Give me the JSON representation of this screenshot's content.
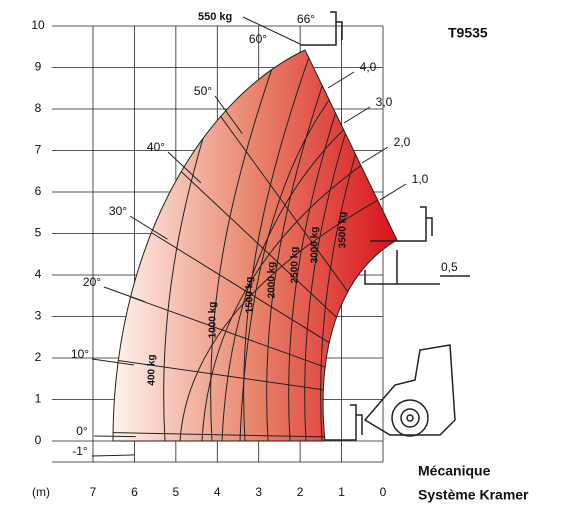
{
  "title": "T9535",
  "caption": [
    "Mécanique",
    "Système Kramer"
  ],
  "axis": {
    "unit": "(m)",
    "xticks": [
      7,
      6,
      5,
      4,
      3,
      2,
      1,
      0
    ],
    "yticks": [
      0,
      1,
      2,
      3,
      4,
      5,
      6,
      7,
      8,
      9,
      10
    ]
  },
  "top_load": "550 kg",
  "offset": "0,5",
  "angles": [
    "66°",
    "60°",
    "50°",
    "40°",
    "30°",
    "20°",
    "10°",
    "0°",
    "-1°"
  ],
  "extensions": [
    "4,0",
    "3,0",
    "2,0",
    "1,0"
  ],
  "loads": [
    "400 kg",
    "1000 kg",
    "1500 kg",
    "2000 kg",
    "2500 kg",
    "3000 kg",
    "3500 kg"
  ]
}
